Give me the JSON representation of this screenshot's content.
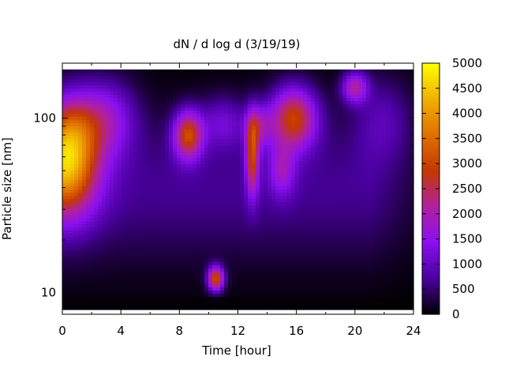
{
  "chart_data": {
    "type": "heatmap",
    "title": "dN / d log d (3/19/19)",
    "xlabel": "Time [hour]",
    "ylabel": "Particle size [nm]",
    "xlim": [
      0,
      24
    ],
    "ylim": [
      8,
      190
    ],
    "y_scale": "log",
    "x_ticks": [
      "0",
      "4",
      "8",
      "12",
      "16",
      "20",
      "24"
    ],
    "y_ticks": [
      "10",
      "100"
    ],
    "colorbar": {
      "ticks": [
        "0",
        "500",
        "1000",
        "1500",
        "2000",
        "2500",
        "3000",
        "3500",
        "4000",
        "4500",
        "5000"
      ],
      "range": [
        0,
        5000
      ],
      "colormap": [
        "#000000",
        "#4a00a0",
        "#8a10f0",
        "#b020a0",
        "#c43800",
        "#e07000",
        "#f0b000",
        "#ffff00"
      ]
    },
    "background_level": 650,
    "features": [
      {
        "time": 0.2,
        "size": 55,
        "time_width": 2.2,
        "size_width_log10": 0.3,
        "value": 3850
      },
      {
        "time": 0.8,
        "size": 90,
        "time_width": 1.6,
        "size_width_log10": 0.2,
        "value": 900
      },
      {
        "time": 8.6,
        "size": 80,
        "time_width": 1.0,
        "size_width_log10": 0.14,
        "value": 2700
      },
      {
        "time": 10.5,
        "size": 12,
        "time_width": 0.55,
        "size_width_log10": 0.07,
        "value": 3000
      },
      {
        "time": 13.0,
        "size": 60,
        "time_width": 0.45,
        "size_width_log10": 0.22,
        "value": 2400
      },
      {
        "time": 13.4,
        "size": 90,
        "time_width": 0.9,
        "size_width_log10": 0.12,
        "value": 1300
      },
      {
        "time": 15.8,
        "size": 100,
        "time_width": 1.6,
        "size_width_log10": 0.18,
        "value": 2700
      },
      {
        "time": 15.0,
        "size": 50,
        "time_width": 0.9,
        "size_width_log10": 0.15,
        "value": 1200
      },
      {
        "time": 20.0,
        "size": 150,
        "time_width": 0.9,
        "size_width_log10": 0.09,
        "value": 1900
      },
      {
        "time": 3.0,
        "size": 100,
        "time_width": 2.0,
        "size_width_log10": 0.22,
        "value": 1400
      },
      {
        "time": 11.0,
        "size": 95,
        "time_width": 1.5,
        "size_width_log10": 0.15,
        "value": 900
      },
      {
        "time": 22.0,
        "size": 100,
        "time_width": 2.0,
        "size_width_log10": 0.25,
        "value": 700
      }
    ]
  }
}
